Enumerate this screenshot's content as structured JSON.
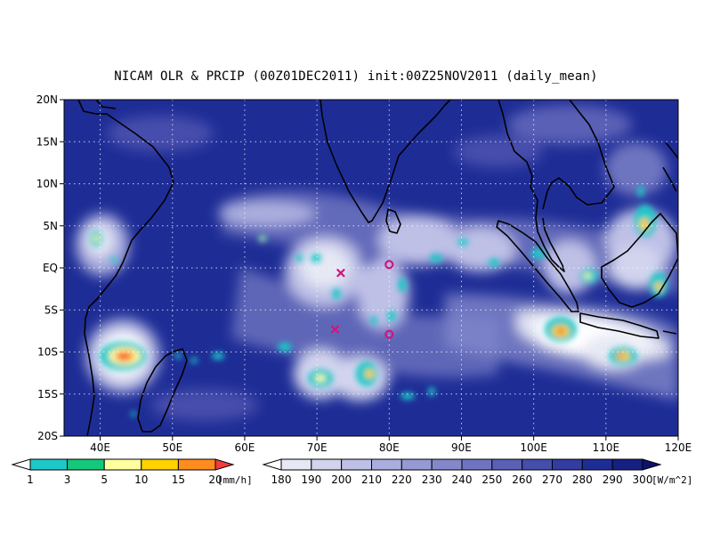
{
  "title": "NICAM OLR & PRCIP (00Z01DEC2011) init:00Z25NOV2011 (daily_mean)",
  "map": {
    "lon_range": [
      35,
      120
    ],
    "lat_range": [
      -20,
      20
    ],
    "lat_ticks": [
      {
        "value": 20,
        "label": "20N"
      },
      {
        "value": 15,
        "label": "15N"
      },
      {
        "value": 10,
        "label": "10N"
      },
      {
        "value": 5,
        "label": "5N"
      },
      {
        "value": 0,
        "label": "EQ"
      },
      {
        "value": -5,
        "label": "5S"
      },
      {
        "value": -10,
        "label": "10S"
      },
      {
        "value": -15,
        "label": "15S"
      },
      {
        "value": -20,
        "label": "20S"
      }
    ],
    "lon_ticks": [
      {
        "value": 40,
        "label": "40E"
      },
      {
        "value": 50,
        "label": "50E"
      },
      {
        "value": 60,
        "label": "60E"
      },
      {
        "value": 70,
        "label": "70E"
      },
      {
        "value": 80,
        "label": "80E"
      },
      {
        "value": 90,
        "label": "90E"
      },
      {
        "value": 100,
        "label": "100E"
      },
      {
        "value": 110,
        "label": "110E"
      },
      {
        "value": 120,
        "label": "120E"
      }
    ],
    "background_color": "#1e2d96",
    "markers": [
      {
        "type": "x",
        "lon": 73.3,
        "lat": -0.6,
        "color": "#d0167e"
      },
      {
        "type": "x",
        "lon": 72.5,
        "lat": -7.3,
        "color": "#d0167e"
      },
      {
        "type": "o",
        "lon": 80.0,
        "lat": 0.4,
        "color": "#d0167e"
      },
      {
        "type": "o",
        "lon": 80.0,
        "lat": -7.9,
        "color": "#d0167e"
      }
    ]
  },
  "precip_legend": {
    "labels": [
      "1",
      "3",
      "5",
      "10",
      "15",
      "20"
    ],
    "unit": "[mm/h]",
    "colors": [
      "#ffffff",
      "#1ec8c8",
      "#14c87a",
      "#ffffa0",
      "#ffd200",
      "#ff8c1e",
      "#f03c3c"
    ]
  },
  "olr_legend": {
    "labels": [
      "180",
      "190",
      "200",
      "210",
      "220",
      "230",
      "240",
      "250",
      "260",
      "270",
      "280",
      "290",
      "300"
    ],
    "unit": "[W/m^2]",
    "colors": [
      "#ffffff",
      "#e6e8f4",
      "#d2d4ee",
      "#bec0e6",
      "#aaaede",
      "#969ad4",
      "#8288ca",
      "#6e74c0",
      "#5a60b6",
      "#464eac",
      "#323ca2",
      "#1e2d96",
      "#161f82",
      "#0c126e"
    ]
  }
}
